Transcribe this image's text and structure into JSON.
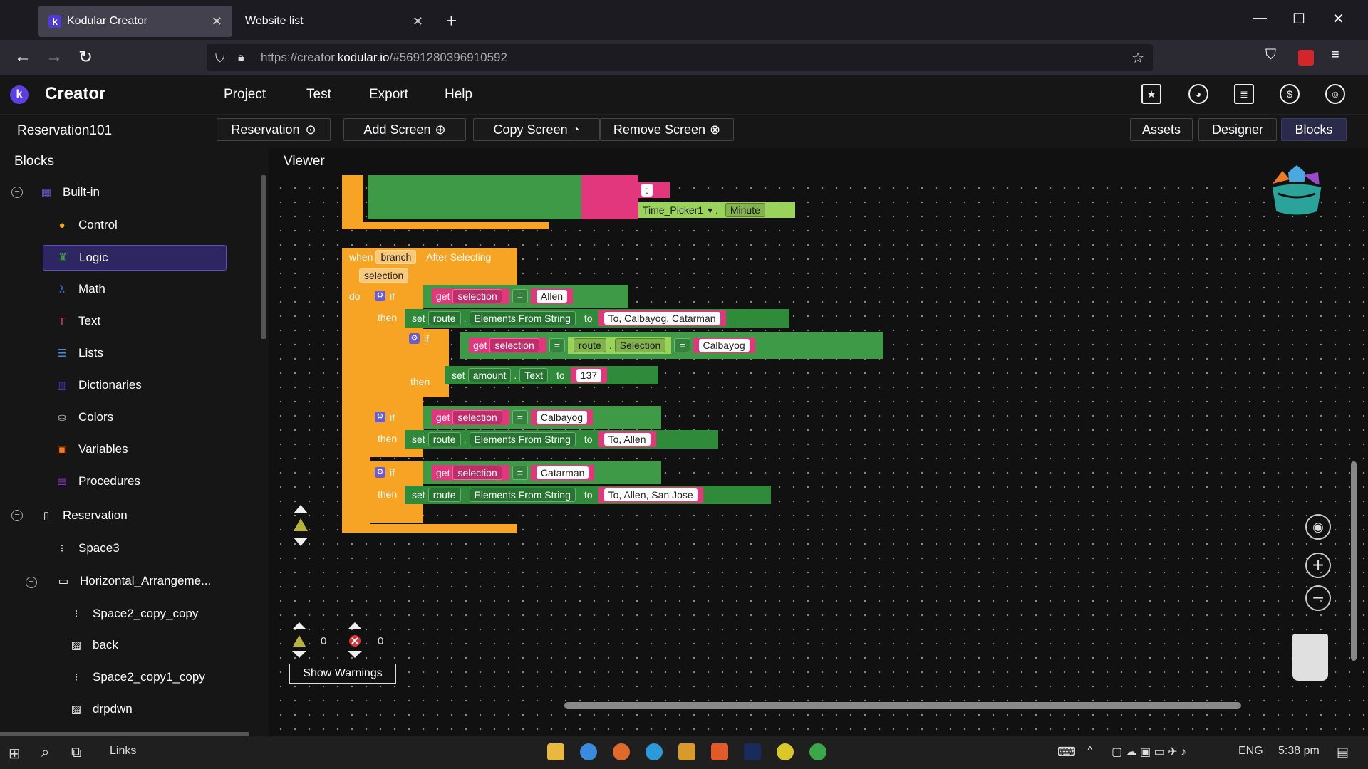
{
  "browser": {
    "tabs": [
      {
        "label": "Kodular Creator"
      },
      {
        "label": "Website list"
      }
    ],
    "url_prefix": "https://creator.",
    "url_domain": "kodular.io",
    "url_rest": "/#5691280396910592"
  },
  "app": {
    "logo": "k",
    "title": "Creator",
    "menu": [
      "Project",
      "Test",
      "Export",
      "Help"
    ]
  },
  "screenbar": {
    "project": "Reservation101",
    "screen_select": "Reservation",
    "add_screen": "Add Screen",
    "copy_screen": "Copy Screen",
    "remove_screen": "Remove Screen",
    "assets": "Assets",
    "designer": "Designer",
    "blocks": "Blocks"
  },
  "blocks_panel": {
    "title": "Blocks",
    "builtin": "Built-in",
    "items": [
      "Control",
      "Logic",
      "Math",
      "Text",
      "Lists",
      "Dictionaries",
      "Colors",
      "Variables",
      "Procedures"
    ],
    "screen": "Reservation",
    "components": [
      "Space3",
      "Horizontal_Arrangeme...",
      "Space2_copy_copy",
      "back",
      "Space2_copy1_copy",
      "drpdwn"
    ]
  },
  "viewer": {
    "title": "Viewer",
    "colon": ":",
    "time_picker": "Time_Picker1",
    "minute": "Minute",
    "when": "when",
    "branch": "branch",
    "after_selecting": "After Selecting",
    "selection": "selection",
    "do": "do",
    "if": "if",
    "then": "then",
    "set": "set",
    "get": "get",
    "eq": "=",
    "route": "route",
    "elements_from_string": "Elements From String",
    "to": "to",
    "amount": "amount",
    "text": "Text",
    "selection_prop": "Selection",
    "v_allen": "Allen",
    "v_route1": "To, Calbayog, Catarman",
    "v_calbayog": "Calbayog",
    "v_137": "137",
    "v_route2": "To, Allen",
    "v_catarman": "Catarman",
    "v_route3": "To, Allen, San Jose",
    "warn_count": "0",
    "error_count": "0",
    "show_warnings": "Show Warnings"
  },
  "taskbar": {
    "links": "Links",
    "lang": "ENG",
    "time": "5:38 pm"
  }
}
